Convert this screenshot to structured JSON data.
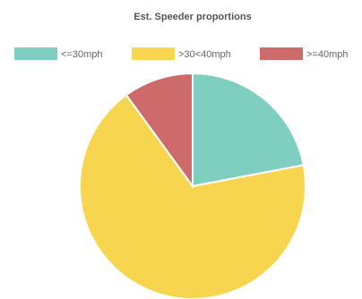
{
  "chart_data": {
    "type": "pie",
    "title": "Est. Speeder proportions",
    "legend_position": "top",
    "categories": [
      "<=30mph",
      ">30<40mph",
      ">=40mph"
    ],
    "values": [
      22,
      68,
      10
    ],
    "colors": [
      "#7ecfbf",
      "#f8d54f",
      "#cd6b6b"
    ],
    "start_angle_deg": 0,
    "direction": "clockwise"
  }
}
